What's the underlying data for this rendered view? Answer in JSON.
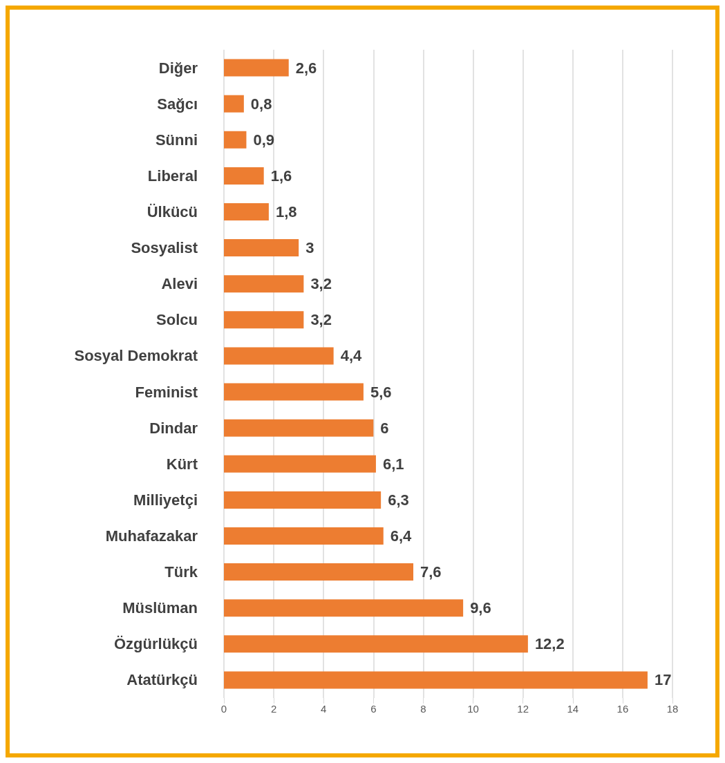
{
  "chart_data": {
    "type": "bar",
    "orientation": "horizontal",
    "categories": [
      "Diğer",
      "Sağcı",
      "Sünni",
      "Liberal",
      "Ülkücü",
      "Sosyalist",
      "Alevi",
      "Solcu",
      "Sosyal Demokrat",
      "Feminist",
      "Dindar",
      "Kürt",
      "Milliyetçi",
      "Muhafazakar",
      "Türk",
      "Müslüman",
      "Özgürlükçü",
      "Atatürkçü"
    ],
    "values": [
      2.6,
      0.8,
      0.9,
      1.6,
      1.8,
      3,
      3.2,
      3.2,
      4.4,
      5.6,
      6,
      6.1,
      6.3,
      6.4,
      7.6,
      9.6,
      12.2,
      17
    ],
    "value_labels": [
      "2,6",
      "0,8",
      "0,9",
      "1,6",
      "1,8",
      "3",
      "3,2",
      "3,2",
      "4,4",
      "5,6",
      "6",
      "6,1",
      "6,3",
      "6,4",
      "7,6",
      "9,6",
      "12,2",
      "17"
    ],
    "color": "#ed7d31",
    "xlim": [
      0,
      18
    ],
    "xticks": [
      0,
      2,
      4,
      6,
      8,
      10,
      12,
      14,
      16,
      18
    ],
    "grid": "x"
  }
}
